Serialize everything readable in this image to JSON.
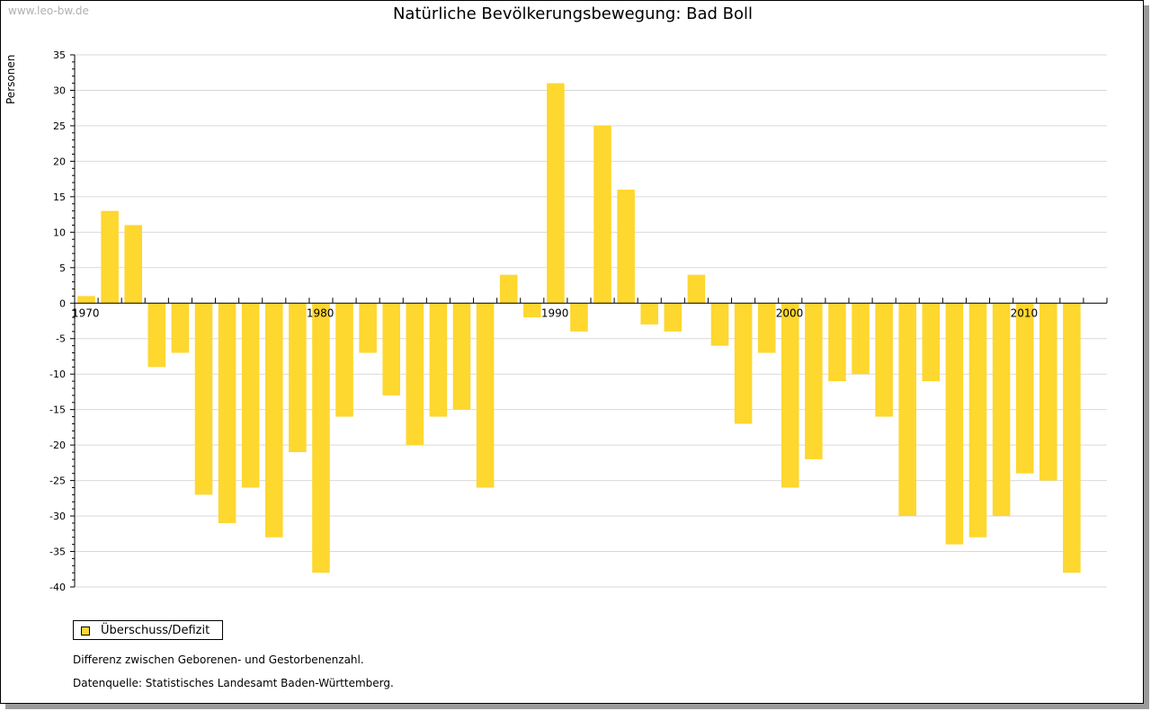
{
  "watermark": "www.leo-bw.de",
  "colors": {
    "bar": "#fed72f",
    "grid": "#d9d9d9",
    "axis": "#000000"
  },
  "legend": {
    "label": "Überschuss/Defizit"
  },
  "notes": {
    "definition": "Differenz zwischen Geborenen- und Gestorbenenzahl.",
    "source": "Datenquelle: Statistisches Landesamt Baden-Württemberg."
  },
  "chart_data": {
    "type": "bar",
    "title": "Natürliche Bevölkerungsbewegung: Bad Boll",
    "ylabel": "Personen",
    "xlabel": "",
    "ylim": [
      -40,
      35
    ],
    "yticks": [
      35,
      30,
      25,
      20,
      15,
      10,
      5,
      0,
      -5,
      -10,
      -15,
      -20,
      -25,
      -30,
      -35,
      -40
    ],
    "xtick_labels": [
      "1970",
      "1980",
      "1990",
      "2000",
      "2010"
    ],
    "grid": true,
    "legend_position": "bottom-left",
    "categories": [
      1970,
      1971,
      1972,
      1973,
      1974,
      1975,
      1976,
      1977,
      1978,
      1979,
      1980,
      1981,
      1982,
      1983,
      1984,
      1985,
      1986,
      1987,
      1988,
      1989,
      1990,
      1991,
      1992,
      1993,
      1994,
      1995,
      1996,
      1997,
      1998,
      1999,
      2000,
      2001,
      2002,
      2003,
      2004,
      2005,
      2006,
      2007,
      2008,
      2009,
      2010,
      2011,
      2012,
      2013
    ],
    "series": [
      {
        "name": "Überschuss/Defizit",
        "values": [
          1,
          13,
          11,
          -9,
          -7,
          -27,
          -31,
          -26,
          -33,
          -21,
          -38,
          -16,
          -7,
          -13,
          -20,
          -16,
          -15,
          -26,
          4,
          -2,
          31,
          -4,
          25,
          16,
          -3,
          -4,
          4,
          -6,
          -17,
          -7,
          -26,
          -22,
          -11,
          -10,
          -16,
          -30,
          -11,
          -34,
          -33,
          -30,
          -24,
          -25,
          -38,
          0
        ]
      }
    ]
  }
}
